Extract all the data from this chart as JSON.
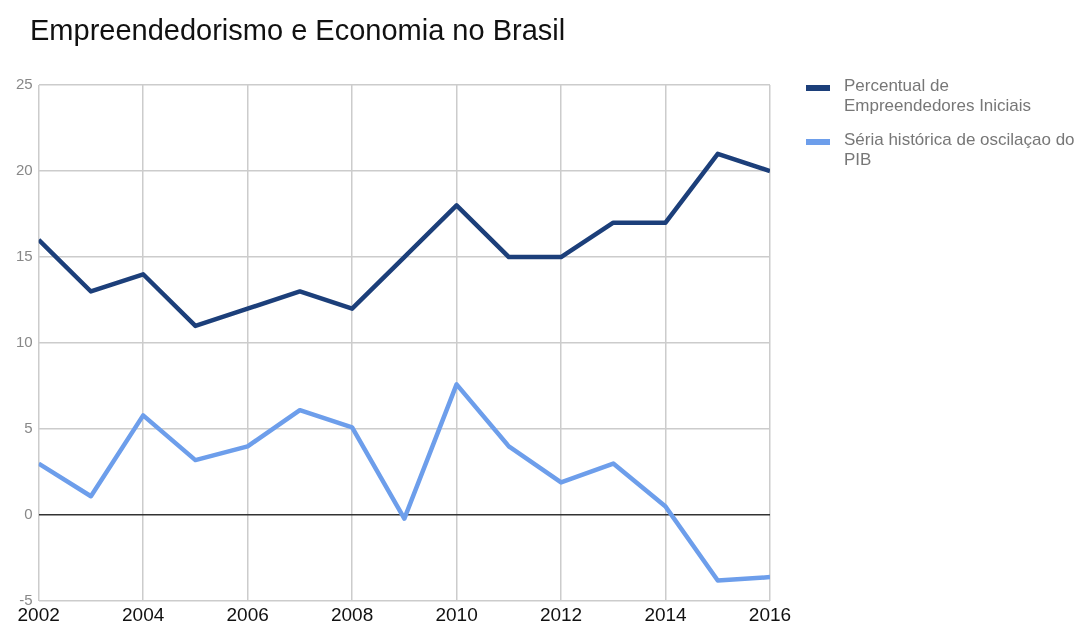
{
  "chart_data": {
    "type": "line",
    "title": "Empreendedorismo e Economia no Brasil",
    "x": [
      2002,
      2003,
      2004,
      2005,
      2006,
      2007,
      2008,
      2009,
      2010,
      2011,
      2012,
      2013,
      2014,
      2015,
      2016
    ],
    "series": [
      {
        "name": "Percentual de Empreendedores Iniciais",
        "color": "#1c3f7a",
        "values": [
          16,
          13,
          14,
          11,
          12,
          13,
          12,
          15,
          18,
          15,
          15,
          17,
          17,
          21,
          20
        ]
      },
      {
        "name": "Séria histórica de oscilaçao do PIB",
        "color": "#6d9eeb",
        "values": [
          3.0,
          1.1,
          5.8,
          3.2,
          4.0,
          6.1,
          5.1,
          -0.2,
          7.6,
          4.0,
          1.9,
          3.0,
          0.5,
          -3.8,
          -3.6
        ]
      }
    ],
    "xlim": [
      2002,
      2016
    ],
    "xticks": [
      2002,
      2004,
      2006,
      2008,
      2010,
      2012,
      2014,
      2016
    ],
    "ylim": [
      -5,
      25
    ],
    "yticks": [
      -5,
      0,
      5,
      10,
      15,
      20,
      25
    ],
    "grid": true,
    "legend": "top right",
    "marker": "none",
    "line_style": "solid"
  }
}
